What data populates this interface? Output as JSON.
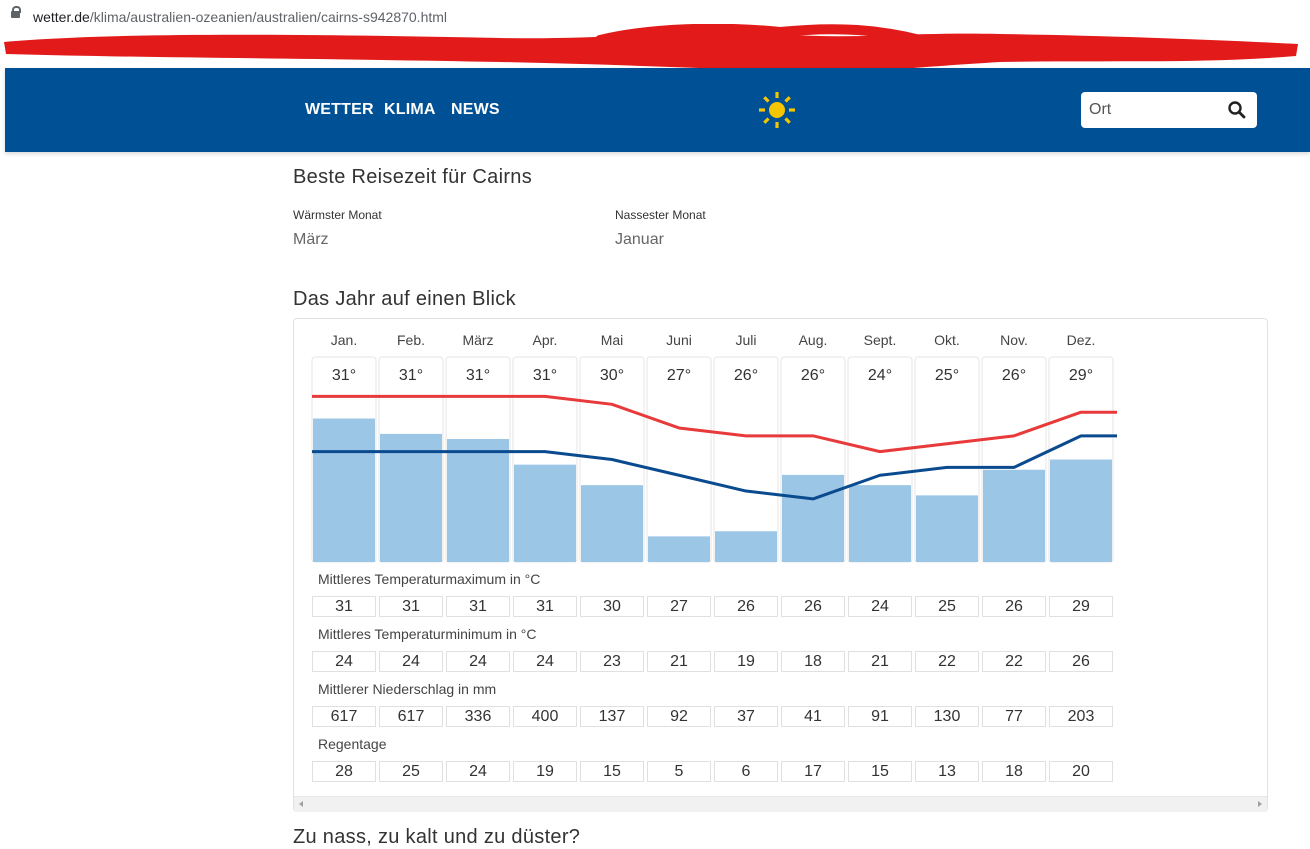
{
  "browser": {
    "url_domain": "wetter.de",
    "url_path": "/klima/australien-ozeanien/australien/cairns-s942870.html"
  },
  "colors": {
    "header_bg": "#005096",
    "max_line": "#e83a3a",
    "min_line": "#0a4a8f",
    "rain_bar": "#9cc6e6",
    "sun": "#f5c500",
    "scribble": "#e21a1a"
  },
  "nav": {
    "items": [
      {
        "label": "WETTER"
      },
      {
        "label": "KLIMA"
      },
      {
        "label": "NEWS"
      }
    ],
    "logo_icon": "sun-icon",
    "search_placeholder": "Ort",
    "search_icon": "search-icon"
  },
  "best_time": {
    "title": "Beste Reisezeit für Cairns",
    "warmest_label": "Wärmster Monat",
    "warmest_value": "März",
    "wettest_label": "Nassester Monat",
    "wettest_value": "Januar"
  },
  "year": {
    "title": "Das Jahr auf einen Blick",
    "months": [
      "Jan.",
      "Feb.",
      "März",
      "Apr.",
      "Mai",
      "Juni",
      "Juli",
      "Aug.",
      "Sept.",
      "Okt.",
      "Nov.",
      "Dez."
    ],
    "max_temp_labels": [
      "31°",
      "31°",
      "31°",
      "31°",
      "30°",
      "27°",
      "26°",
      "26°",
      "24°",
      "25°",
      "26°",
      "29°"
    ],
    "rows": [
      {
        "label": "Mittleres Temperaturmaximum in °C",
        "values": [
          "31",
          "31",
          "31",
          "31",
          "30",
          "27",
          "26",
          "26",
          "24",
          "25",
          "26",
          "29"
        ]
      },
      {
        "label": "Mittleres Temperaturminimum in °C",
        "values": [
          "24",
          "24",
          "24",
          "24",
          "23",
          "21",
          "19",
          "18",
          "21",
          "22",
          "22",
          "26"
        ]
      },
      {
        "label": "Mittlerer Niederschlag in mm",
        "values": [
          "617",
          "617",
          "336",
          "400",
          "137",
          "92",
          "37",
          "41",
          "91",
          "130",
          "77",
          "203"
        ]
      },
      {
        "label": "Regentage",
        "values": [
          "28",
          "25",
          "24",
          "19",
          "15",
          "5",
          "6",
          "17",
          "15",
          "13",
          "18",
          "20"
        ]
      }
    ]
  },
  "chart_data": {
    "type": "line",
    "categories": [
      "Jan.",
      "Feb.",
      "März",
      "Apr.",
      "Mai",
      "Juni",
      "Juli",
      "Aug.",
      "Sept.",
      "Okt.",
      "Nov.",
      "Dez."
    ],
    "series": [
      {
        "values": [
          31,
          31,
          31,
          31,
          30,
          27,
          26,
          26,
          24,
          25,
          26,
          29
        ]
      },
      {
        "values": [
          24,
          24,
          24,
          24,
          23,
          21,
          19,
          18,
          21,
          22,
          22,
          26
        ]
      }
    ],
    "bars": [
      28,
      25,
      24,
      19,
      15,
      5,
      6,
      17,
      15,
      13,
      18,
      20
    ],
    "ylim": [
      10,
      36
    ],
    "bars_ylim": [
      0,
      40
    ],
    "grid": false
  },
  "next_heading": "Zu nass, zu kalt und zu düster?"
}
